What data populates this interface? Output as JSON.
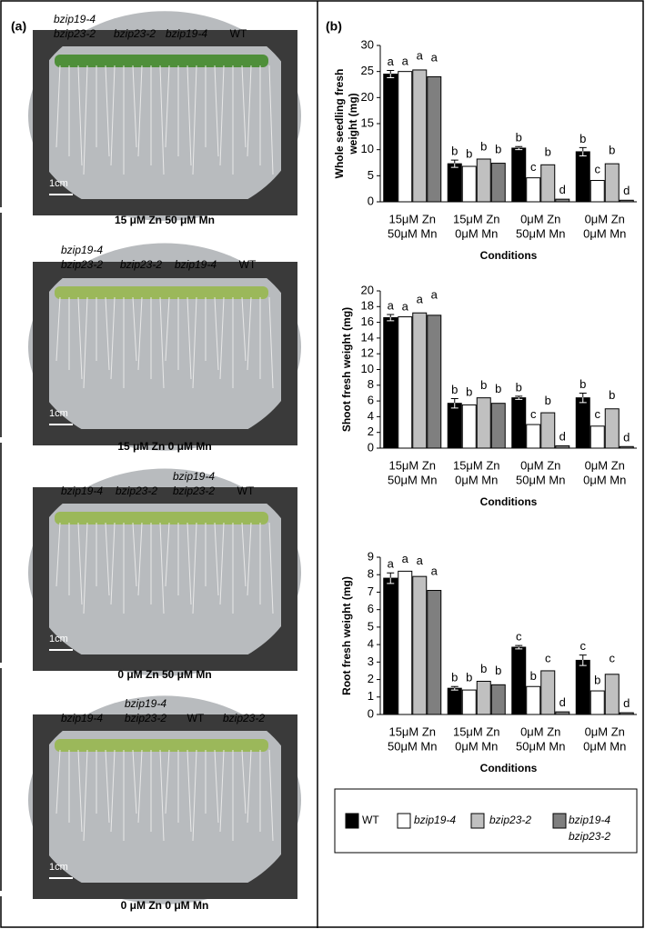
{
  "panel_a": {
    "label": "(a)",
    "photos": [
      {
        "labels": [
          [
            "bzip19-4",
            "bzip23-2"
          ],
          [
            "bzip23-2"
          ],
          [
            "bzip19-4"
          ],
          [
            "WT"
          ]
        ],
        "scale": "1cm",
        "caption": "15 μM Zn 50 μM Mn"
      },
      {
        "labels": [
          [
            "bzip19-4",
            "bzip23-2"
          ],
          [
            "bzip23-2"
          ],
          [
            "bzip19-4"
          ],
          [
            "WT"
          ]
        ],
        "scale": "1cm",
        "caption": "15 μM Zn 0 μM Mn"
      },
      {
        "labels": [
          [
            "bzip19-4"
          ],
          [
            "bzip23-2"
          ],
          [
            "bzip19-4",
            "bzip23-2"
          ],
          [
            "WT"
          ]
        ],
        "scale": "1cm",
        "caption": "0 μM Zn 50 μM Mn"
      },
      {
        "labels": [
          [
            "bzip19-4"
          ],
          [
            "bzip19-4",
            "bzip23-2"
          ],
          [
            "WT"
          ],
          [
            "bzip23-2"
          ]
        ],
        "scale": "1cm",
        "caption": "0 μM Zn 0 μM Mn"
      }
    ]
  },
  "panel_b": {
    "label": "(b)"
  },
  "legend": [
    {
      "name": [
        "WT"
      ],
      "color": "#000000"
    },
    {
      "name": [
        "bzip19-4"
      ],
      "color": "#ffffff"
    },
    {
      "name": [
        "bzip23-2"
      ],
      "color": "#c0c0c0"
    },
    {
      "name": [
        "bzip19-4",
        "bzip23-2"
      ],
      "color": "#7f7f7f"
    }
  ],
  "chart_data": [
    {
      "type": "bar",
      "y_label": [
        "Whole seedling fresh",
        "weight (mg)"
      ],
      "x_label": "Conditions",
      "categories": [
        [
          "15μM Zn",
          "50μM Mn"
        ],
        [
          "15μM Zn",
          "0μM Mn"
        ],
        [
          "0μM Zn",
          "50μM Mn"
        ],
        [
          "0μM Zn",
          "0μM Mn"
        ]
      ],
      "ylim": [
        0,
        30
      ],
      "yticks": [
        0,
        5,
        10,
        15,
        20,
        25,
        30
      ],
      "series": [
        {
          "values": [
            24.5,
            7.3,
            10.3,
            9.6
          ],
          "errors": [
            0.7,
            0.7,
            0.3,
            0.8
          ],
          "letters": [
            "a",
            "b",
            "b",
            "b"
          ]
        },
        {
          "values": [
            25.0,
            6.8,
            4.6,
            4.1
          ],
          "errors": [
            0.3,
            0.7,
            0.4,
            0.4
          ],
          "letters": [
            "a",
            "b",
            "c",
            "c"
          ]
        },
        {
          "values": [
            25.3,
            8.2,
            7.1,
            7.3
          ],
          "errors": [
            1.0,
            0.7,
            0.7,
            0.9
          ],
          "letters": [
            "a",
            "b",
            "b",
            "b"
          ]
        },
        {
          "values": [
            24.0,
            7.4,
            0.5,
            0.3
          ],
          "errors": [
            2.0,
            1.0,
            0.1,
            0.1
          ],
          "letters": [
            "a",
            "b",
            "d",
            "d"
          ]
        }
      ]
    },
    {
      "type": "bar",
      "y_label": [
        "Shoot fresh weight (mg)"
      ],
      "x_label": "Conditions",
      "categories": [
        [
          "15μM Zn",
          "50μM Mn"
        ],
        [
          "15μM Zn",
          "0μM Mn"
        ],
        [
          "0μM Zn",
          "50μM Mn"
        ],
        [
          "0μM Zn",
          "0μM Mn"
        ]
      ],
      "ylim": [
        0,
        20
      ],
      "yticks": [
        0,
        2,
        4,
        6,
        8,
        10,
        12,
        14,
        16,
        18,
        20
      ],
      "series": [
        {
          "values": [
            16.6,
            5.7,
            6.4,
            6.4
          ],
          "errors": [
            0.4,
            0.6,
            0.2,
            0.6
          ],
          "letters": [
            "a",
            "b",
            "b",
            "b"
          ]
        },
        {
          "values": [
            16.7,
            5.5,
            3.0,
            2.8
          ],
          "errors": [
            0.2,
            0.5,
            0.2,
            0.4
          ],
          "letters": [
            "a",
            "b",
            "c",
            "c"
          ]
        },
        {
          "values": [
            17.2,
            6.4,
            4.5,
            5.0
          ],
          "errors": [
            0.6,
            0.5,
            0.4,
            0.6
          ],
          "letters": [
            "a",
            "b",
            "b",
            "b"
          ]
        },
        {
          "values": [
            16.9,
            5.7,
            0.3,
            0.2
          ],
          "errors": [
            1.5,
            0.7,
            0.05,
            0.05
          ],
          "letters": [
            "a",
            "b",
            "d",
            "d"
          ]
        }
      ]
    },
    {
      "type": "bar",
      "y_label": [
        "Root fresh weight (mg)"
      ],
      "x_label": "Conditions",
      "categories": [
        [
          "15μM Zn",
          "50μM Mn"
        ],
        [
          "15μM Zn",
          "0μM Mn"
        ],
        [
          "0μM Zn",
          "50μM Mn"
        ],
        [
          "0μM Zn",
          "0μM Mn"
        ]
      ],
      "ylim": [
        0,
        9
      ],
      "yticks": [
        0,
        1,
        2,
        3,
        4,
        5,
        6,
        7,
        8,
        9
      ],
      "series": [
        {
          "values": [
            7.8,
            1.5,
            3.85,
            3.1
          ],
          "errors": [
            0.3,
            0.1,
            0.1,
            0.3
          ],
          "letters": [
            "a",
            "b",
            "c",
            "c"
          ]
        },
        {
          "values": [
            8.2,
            1.4,
            1.6,
            1.35
          ],
          "errors": [
            0.2,
            0.2,
            0.1,
            0.1
          ],
          "letters": [
            "a",
            "b",
            "b",
            "b"
          ]
        },
        {
          "values": [
            7.9,
            1.9,
            2.5,
            2.3
          ],
          "errors": [
            0.4,
            0.2,
            0.2,
            0.4
          ],
          "letters": [
            "a",
            "b",
            "c",
            "c"
          ]
        },
        {
          "values": [
            7.1,
            1.7,
            0.15,
            0.1
          ],
          "errors": [
            0.6,
            0.3,
            0.03,
            0.03
          ],
          "letters": [
            "a",
            "b",
            "d",
            "d"
          ]
        }
      ]
    }
  ]
}
